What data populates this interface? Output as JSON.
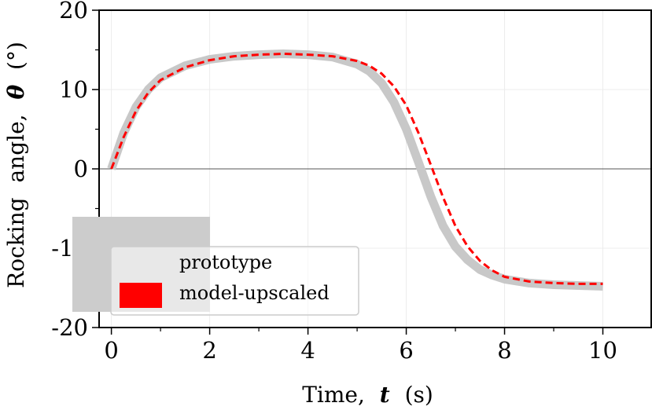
{
  "chart_data": {
    "type": "line",
    "xlabel_parts": [
      "Time,",
      "t",
      "(s)"
    ],
    "ylabel_parts": [
      "Rocking",
      "angle,",
      "θ",
      "(°)"
    ],
    "xlim": [
      -0.25,
      11.0
    ],
    "ylim": [
      -20,
      20
    ],
    "xticks": [
      0,
      2,
      4,
      6,
      8,
      10
    ],
    "xtick_labels": [
      "0",
      "2",
      "4",
      "6",
      "8",
      "10"
    ],
    "yticks": [
      -20,
      -10,
      0,
      10,
      20
    ],
    "ytick_labels": [
      "-20",
      "-10",
      "0",
      "10",
      "20"
    ],
    "grid": true,
    "zero_line": true,
    "legend_position": "bottom-left",
    "series": [
      {
        "name": "prototype",
        "color": "#c8c8c8",
        "style": "solid-thick",
        "x": [
          0,
          0.25,
          0.5,
          0.75,
          1.0,
          1.5,
          2.0,
          2.5,
          3.0,
          3.5,
          4.0,
          4.5,
          5.0,
          5.25,
          5.5,
          5.75,
          6.0,
          6.25,
          6.5,
          6.75,
          7.0,
          7.25,
          7.5,
          7.75,
          8.0,
          8.5,
          9.0,
          9.5,
          10.0
        ],
        "y": [
          0,
          4.5,
          7.8,
          10.0,
          11.5,
          13.0,
          13.8,
          14.2,
          14.4,
          14.5,
          14.4,
          14.1,
          13.2,
          12.3,
          10.8,
          8.4,
          5.0,
          0.8,
          -3.5,
          -7.2,
          -9.8,
          -11.5,
          -12.7,
          -13.4,
          -13.9,
          -14.4,
          -14.6,
          -14.7,
          -14.8
        ]
      },
      {
        "name": "model-upscaled",
        "color": "#ff0000",
        "style": "dashed",
        "x": [
          0,
          0.25,
          0.5,
          0.75,
          1.0,
          1.5,
          2.0,
          2.5,
          3.0,
          3.5,
          4.0,
          4.5,
          5.0,
          5.25,
          5.5,
          5.75,
          6.0,
          6.25,
          6.5,
          6.75,
          7.0,
          7.25,
          7.5,
          7.75,
          8.0,
          8.5,
          9.0,
          9.5,
          10.0
        ],
        "y": [
          0,
          4.0,
          7.3,
          9.6,
          11.2,
          12.8,
          13.7,
          14.2,
          14.4,
          14.5,
          14.4,
          14.2,
          13.6,
          13.0,
          12.0,
          10.4,
          8.0,
          4.5,
          0.5,
          -3.6,
          -7.2,
          -9.8,
          -11.6,
          -12.8,
          -13.6,
          -14.2,
          -14.4,
          -14.5,
          -14.5
        ]
      }
    ]
  }
}
